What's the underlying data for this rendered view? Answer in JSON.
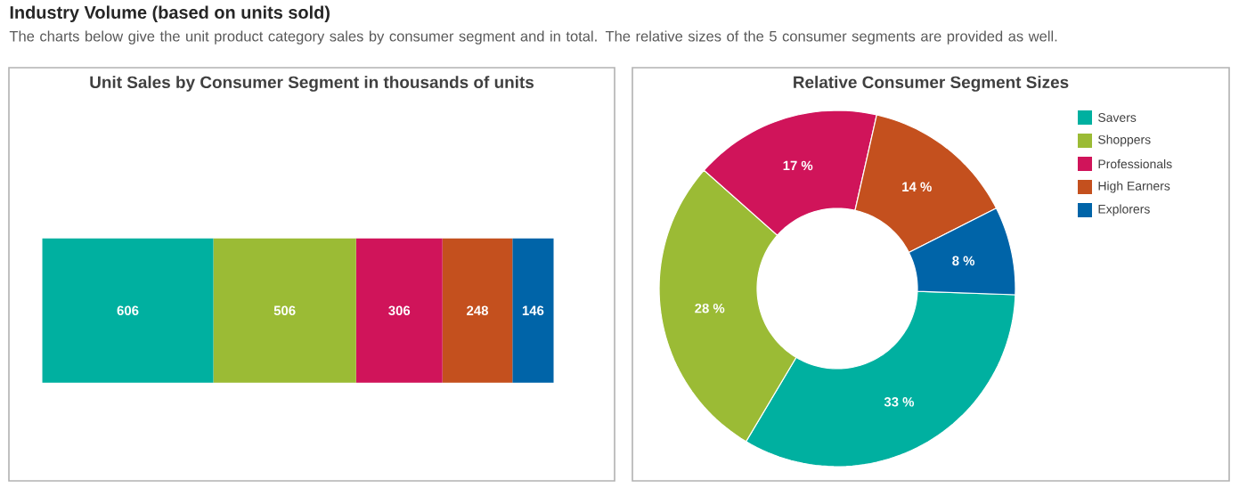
{
  "chart_data": [
    {
      "type": "other",
      "title": "Industry Volume (based on units sold)",
      "subtitle": "The charts below give the unit product category sales by consumer segment and in total. The relative sizes of the 5 consumer segments are provided as well."
    },
    {
      "type": "bar",
      "title": "Unit Sales by Consumer Segment in thousands of units",
      "orientation": "horizontal",
      "stacked": true,
      "data_labels": true,
      "tick_labels": false,
      "categories": [
        null
      ],
      "series": [
        {
          "color": "#00b0a0",
          "values": [
            606
          ]
        },
        {
          "color": "#9bbb35",
          "values": [
            506
          ]
        },
        {
          "color": "#d0145a",
          "values": [
            306
          ]
        },
        {
          "color": "#c4501e",
          "values": [
            248
          ]
        },
        {
          "color": "#0064a8",
          "values": [
            146
          ]
        }
      ]
    },
    {
      "type": "donut",
      "title": "Relative Consumer Segment Sizes",
      "legend": "top right",
      "categories": [
        "Savers",
        "Shoppers",
        "Professionals",
        "High Earners",
        "Explorers"
      ],
      "values": [
        33,
        28,
        17,
        14,
        8
      ],
      "colors": [
        "#00b0a0",
        "#9bbb35",
        "#d0145a",
        "#c4501e",
        "#0064a8"
      ],
      "value_labels": [
        "33 %",
        "28 %",
        "17 %",
        "14 %",
        "8 %"
      ]
    }
  ]
}
